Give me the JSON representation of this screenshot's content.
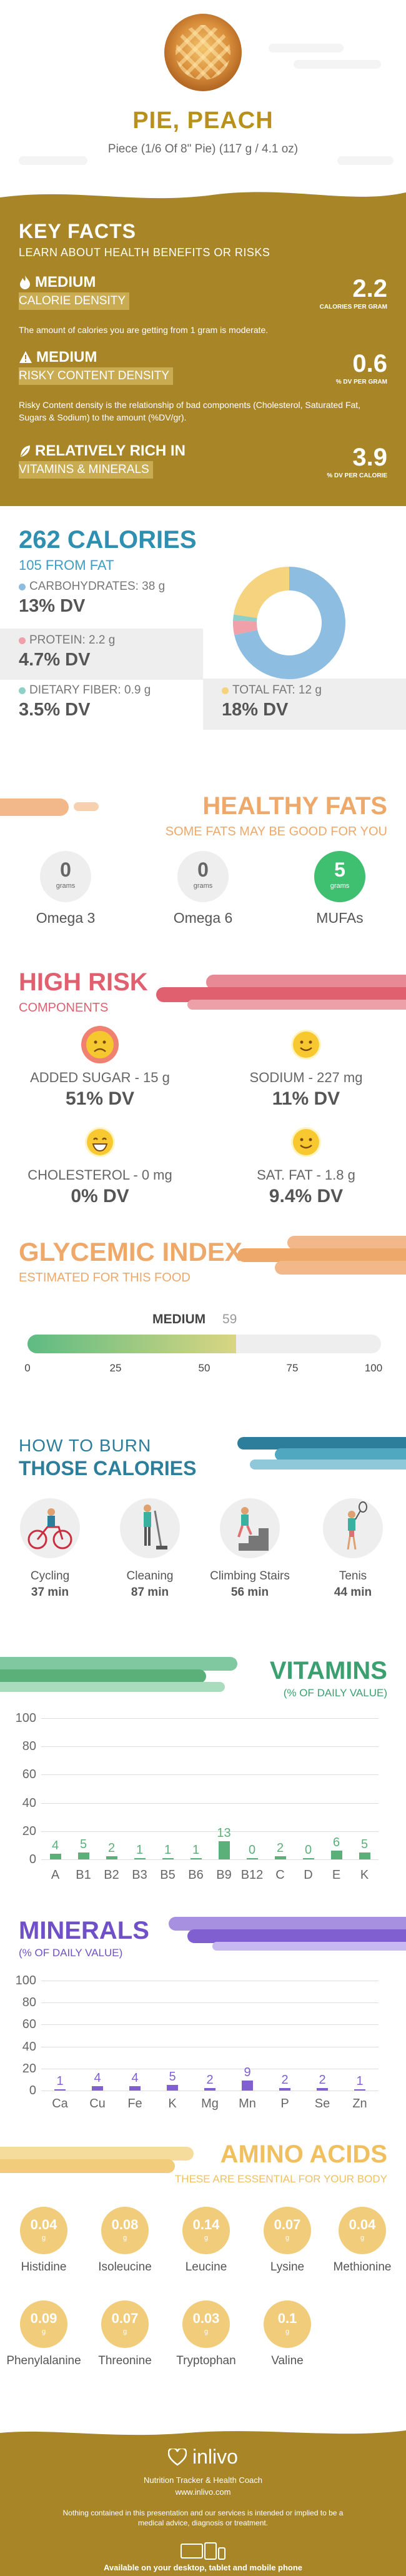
{
  "header": {
    "title": "PIE, PEACH",
    "serving": "Piece (1/6 Of 8\" Pie) (117 g / 4.1 oz)"
  },
  "key_facts": {
    "title": "KEY FACTS",
    "subtitle": "LEARN ABOUT HEALTH BENEFITS OR RISKS",
    "items": [
      {
        "level": "MEDIUM",
        "label": "CALORIE DENSITY",
        "value": "2.2",
        "unit": "CALORIES PER GRAM",
        "description": "The amount of calories you are getting from 1 gram is moderate.",
        "icon": "flame-icon"
      },
      {
        "level": "MEDIUM",
        "label": "RISKY CONTENT DENSITY",
        "value": "0.6",
        "unit": "% DV PER GRAM",
        "description": "Risky Content density is the relationship of bad components (Cholesterol, Saturated Fat, Sugars & Sodium) to the amount (%DV/gr).",
        "icon": "warning-icon"
      },
      {
        "level": "RELATIVELY RICH  IN",
        "label": "VITAMINS & MINERALS",
        "value": "3.9",
        "unit": "% DV PER CALORIE",
        "description": "",
        "icon": "leaf-icon"
      }
    ]
  },
  "calories": {
    "title": "262 CALORIES",
    "subtitle": "105 FROM FAT",
    "macros": [
      {
        "label": "CARBOHYDRATES: 38 g",
        "dv": "13% DV",
        "color": "#8dbde0"
      },
      {
        "label": "PROTEIN: 2.2 g",
        "dv": "4.7% DV",
        "color": "#f0a0a8"
      },
      {
        "label": "DIETARY FIBER: 0.9 g",
        "dv": "3.5% DV",
        "color": "#8dd0c8"
      },
      {
        "label": "TOTAL FAT: 12 g",
        "dv": "18% DV",
        "color": "#f5d37f"
      }
    ],
    "donut": [
      {
        "name": "carbohydrates",
        "value": 38,
        "color": "#8dbde0"
      },
      {
        "name": "protein",
        "value": 2.2,
        "color": "#f0a0a8"
      },
      {
        "name": "fiber",
        "value": 0.9,
        "color": "#8dd0c8"
      },
      {
        "name": "fat",
        "value": 12,
        "color": "#f5d37f"
      }
    ]
  },
  "healthy_fats": {
    "title": "HEALTHY FATS",
    "subtitle": "SOME FATS MAY BE GOOD FOR YOU",
    "items": [
      {
        "value": "0",
        "unit": "grams",
        "name": "Omega 3",
        "highlight": false
      },
      {
        "value": "0",
        "unit": "grams",
        "name": "Omega 6",
        "highlight": false
      },
      {
        "value": "5",
        "unit": "grams",
        "name": "MUFAs",
        "highlight": true
      }
    ]
  },
  "high_risk": {
    "title": "HIGH RISK",
    "subtitle": "COMPONENTS",
    "items": [
      {
        "label": "ADDED SUGAR - 15 g",
        "dv": "51% DV",
        "face": "sad",
        "color": "#f08070"
      },
      {
        "label": "SODIUM - 227 mg",
        "dv": "11% DV",
        "face": "smile",
        "color": "#f8c830"
      },
      {
        "label": "CHOLESTEROL - 0 mg",
        "dv": "0% DV",
        "face": "grin",
        "color": "#f8c830"
      },
      {
        "label": "SAT. FAT - 1.8 g",
        "dv": "9.4% DV",
        "face": "smile",
        "color": "#f8c830"
      }
    ]
  },
  "glycemic": {
    "title": "GLYCEMIC INDEX",
    "subtitle": "ESTIMATED FOR THIS FOOD",
    "level": "MEDIUM",
    "value": "59",
    "value_num": 59,
    "ticks": [
      "0",
      "25",
      "50",
      "75",
      "100"
    ]
  },
  "burn": {
    "title1": "HOW TO BURN",
    "title2": "THOSE CALORIES",
    "activities": [
      {
        "name": "Cycling",
        "minutes": "37 min",
        "icon": "cycling-icon"
      },
      {
        "name": "Cleaning",
        "minutes": "87 min",
        "icon": "cleaning-icon"
      },
      {
        "name": "Climbing Stairs",
        "minutes": "56 min",
        "icon": "stairs-icon"
      },
      {
        "name": "Tenis",
        "minutes": "44 min",
        "icon": "tennis-icon"
      }
    ]
  },
  "chart_data": [
    {
      "type": "bar",
      "title": "VITAMINS",
      "subtitle": "(% OF DAILY VALUE)",
      "categories": [
        "A",
        "B1",
        "B2",
        "B3",
        "B5",
        "B6",
        "B9",
        "B12",
        "C",
        "D",
        "E",
        "K"
      ],
      "values": [
        4,
        5,
        2,
        1,
        1,
        1,
        13,
        0,
        2,
        0,
        6,
        5
      ],
      "ylim": [
        0,
        100
      ],
      "yticks": [
        "100",
        "80",
        "60",
        "40",
        "20",
        "0"
      ],
      "color": "#5bb07a"
    },
    {
      "type": "bar",
      "title": "MINERALS",
      "subtitle": "(% OF DAILY VALUE)",
      "categories": [
        "Ca",
        "Cu",
        "Fe",
        "K",
        "Mg",
        "Mn",
        "P",
        "Se",
        "Zn"
      ],
      "values": [
        1,
        4,
        4,
        5,
        2,
        9,
        2,
        2,
        1
      ],
      "ylim": [
        0,
        100
      ],
      "yticks": [
        "100",
        "80",
        "60",
        "40",
        "20",
        "0"
      ],
      "color": "#8060d0"
    }
  ],
  "amino": {
    "title": "AMINO ACIDS",
    "subtitle": "THESE ARE ESSENTIAL FOR YOUR BODY",
    "unit": "g",
    "items": [
      {
        "value": "0.04",
        "name": "Histidine"
      },
      {
        "value": "0.08",
        "name": "Isoleucine"
      },
      {
        "value": "0.14",
        "name": "Leucine"
      },
      {
        "value": "0.07",
        "name": "Lysine"
      },
      {
        "value": "0.04",
        "name": "Methionine"
      },
      {
        "value": "0.09",
        "name": "Phenylalanine"
      },
      {
        "value": "0.07",
        "name": "Threonine"
      },
      {
        "value": "0.03",
        "name": "Tryptophan"
      },
      {
        "value": "0.1",
        "name": "Valine"
      }
    ]
  },
  "footer": {
    "brand": "inlivo",
    "tagline": "Nutrition Tracker & Health Coach",
    "url": "www.inlivo.com",
    "disclaimer": "Nothing contained in this presentation and our services is intended or implied to be a medical advice, diagnosis or treatment.",
    "available": "Available on your desktop, tablet and mobile phone"
  }
}
